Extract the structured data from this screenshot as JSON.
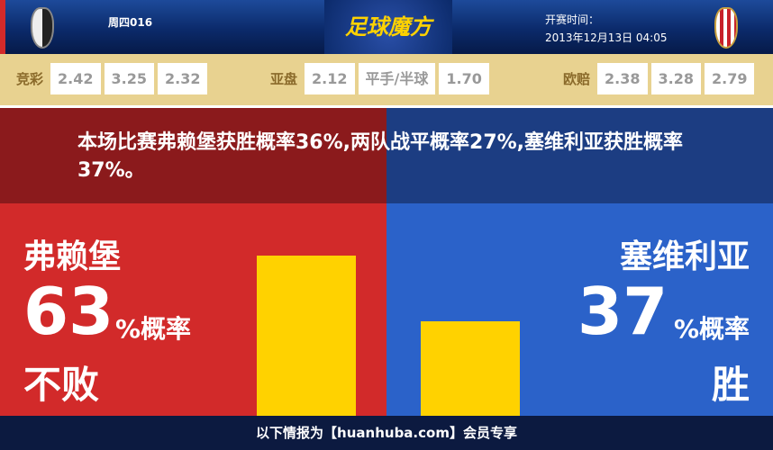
{
  "header": {
    "match_no": "周四016",
    "logo_text": "足球魔方",
    "kickoff_label": "开赛时间：",
    "kickoff_time": "2013年12月13日 04:05"
  },
  "odds": {
    "jingcai": {
      "label": "竞彩",
      "values": [
        "2.42",
        "3.25",
        "2.32"
      ]
    },
    "yapan": {
      "label": "亚盘",
      "values": [
        "2.12",
        "平手/半球",
        "1.70"
      ]
    },
    "oupei": {
      "label": "欧赔",
      "values": [
        "2.38",
        "3.28",
        "2.79"
      ]
    }
  },
  "summary": "本场比赛弗赖堡获胜概率36%,两队战平概率27%,塞维利亚获胜概率37%。",
  "home": {
    "name": "弗赖堡",
    "percent": "63",
    "unit": "%概率",
    "result": "不败",
    "bar_percent": 63
  },
  "away": {
    "name": "塞维利亚",
    "percent": "37",
    "unit": "%概率",
    "result": "胜",
    "bar_percent": 37
  },
  "footer": "以下情报为【huanhuba.com】会员专享",
  "colors": {
    "home": "#d22a2a",
    "away": "#2b62c9",
    "bar": "#ffd200"
  }
}
